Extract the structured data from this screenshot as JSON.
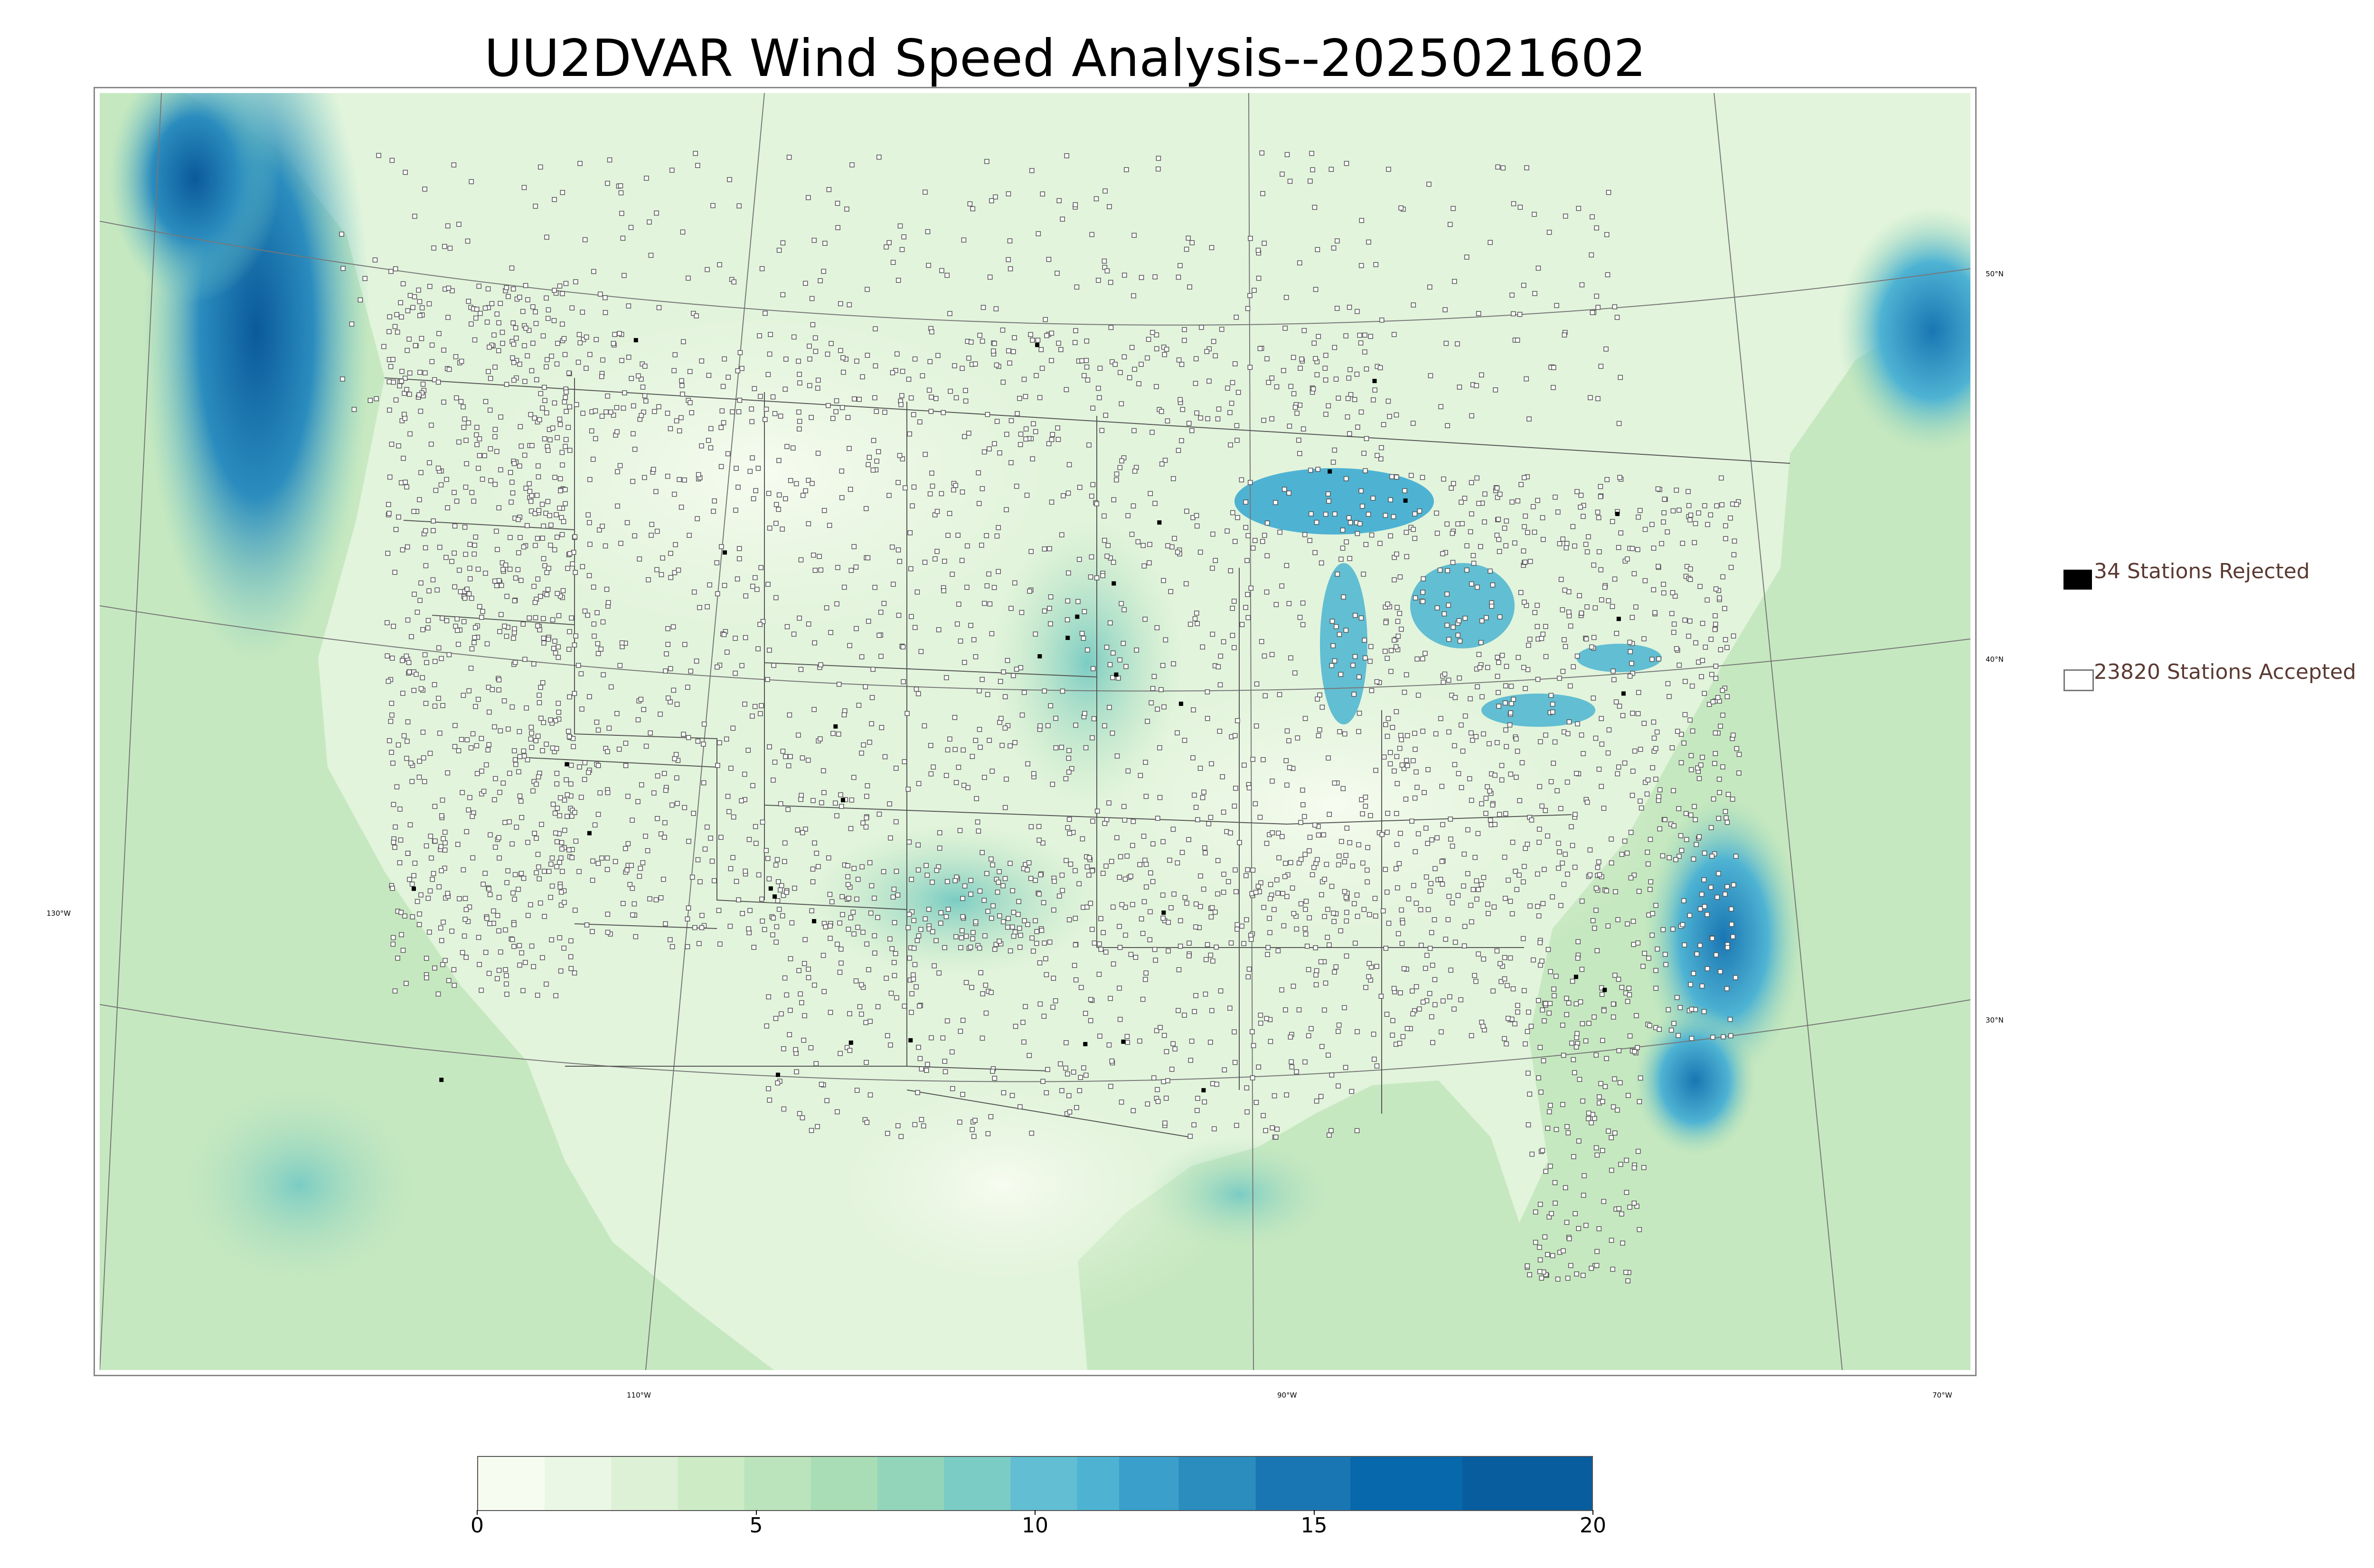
{
  "title": "UU2DVAR Wind Speed Analysis--2025021602",
  "map": {
    "lat_labels": [
      {
        "text": "50°N"
      },
      {
        "text": "40°N"
      },
      {
        "text": "30°N"
      }
    ],
    "lon_labels": [
      {
        "text": "130°W"
      },
      {
        "text": "110°W"
      },
      {
        "text": "90°W"
      },
      {
        "text": "70°W"
      }
    ],
    "colors": {
      "land_low": "#eef8e8",
      "land_mid": "#c8eac4",
      "ocean_mid": "#9edbc0",
      "strong": "#4badd0",
      "very_strong": "#1b70b0",
      "max": "#0a5a9a"
    }
  },
  "legend": {
    "rejected_label": "34 Stations Rejected",
    "accepted_label": "23820 Stations Accepted"
  },
  "colorbar": {
    "ticks": [
      "0",
      "5",
      "10",
      "15",
      "20"
    ],
    "min": 0,
    "max": 20,
    "colors": [
      "#f7fcf0",
      "#eaf7e4",
      "#dcf1d6",
      "#cdebc5",
      "#bbe4bc",
      "#a8ddb5",
      "#92d5ba",
      "#7bccc4",
      "#62bed2",
      "#4eb3d3",
      "#3a9fca",
      "#2b8cbe",
      "#1a76b3",
      "#0868ac",
      "#085d9e"
    ]
  }
}
